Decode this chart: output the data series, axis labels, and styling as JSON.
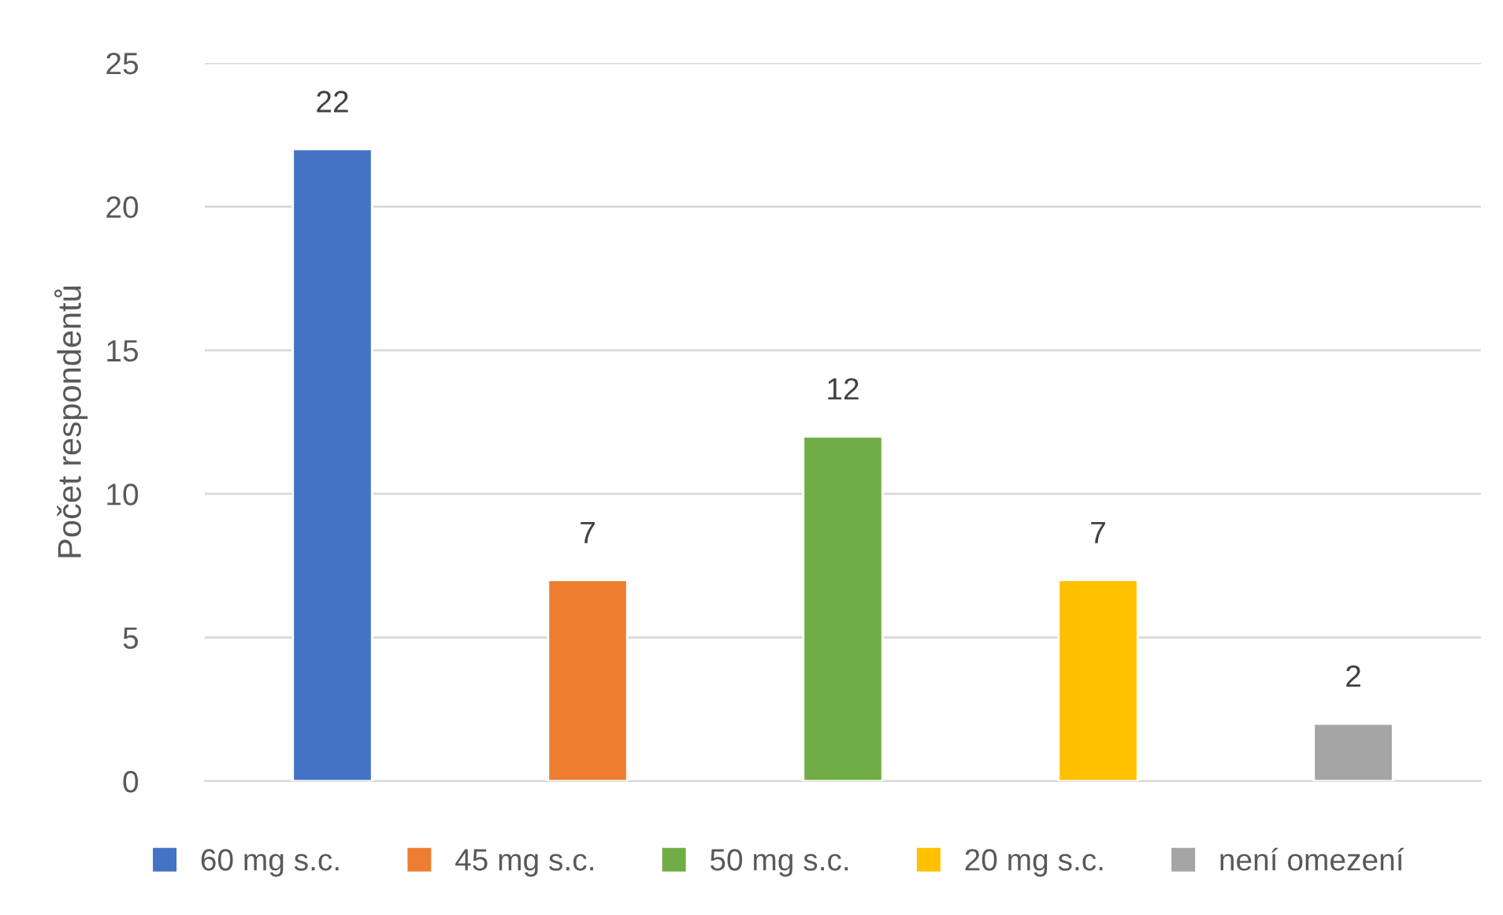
{
  "chart_data": {
    "type": "bar",
    "ylabel": "Počet respondentů",
    "categories": [
      null
    ],
    "series": [
      {
        "name": "60 mg s.c.",
        "color": "#4472c4",
        "values": [
          22
        ]
      },
      {
        "name": "45 mg s.c.",
        "color": "#ed7d31",
        "values": [
          7
        ]
      },
      {
        "name": "50 mg s.c.",
        "color": "#70ad47",
        "values": [
          12
        ]
      },
      {
        "name": "20 mg s.c.",
        "color": "#ffc000",
        "values": [
          7
        ]
      },
      {
        "name": "není omezení",
        "color": "#a5a5a5",
        "values": [
          2
        ]
      }
    ],
    "ylim": [
      0,
      25
    ],
    "yticks": [
      0,
      5,
      10,
      15,
      20,
      25
    ],
    "grid": "y",
    "legend": "bottom",
    "data_labels": true
  }
}
